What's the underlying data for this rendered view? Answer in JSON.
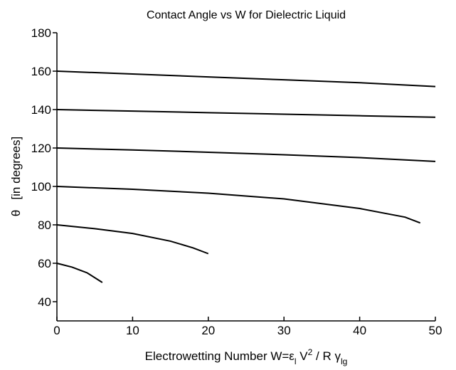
{
  "chart_data": {
    "type": "line",
    "title": "Contact Angle vs W for Dielectric Liquid",
    "xlabel": [
      {
        "text": "Electrowetting Number W=ε"
      },
      {
        "text": "l",
        "baseline": "sub"
      },
      {
        "text": " V"
      },
      {
        "text": "2",
        "baseline": "super"
      },
      {
        "text": " / R γ"
      },
      {
        "text": "lg",
        "baseline": "sub"
      }
    ],
    "ylabel": "θ   [in degrees]",
    "xlim": [
      0,
      50
    ],
    "xticks": [
      0,
      10,
      20,
      30,
      40,
      50
    ],
    "ylim": [
      30,
      180
    ],
    "yticks": [
      40,
      60,
      80,
      100,
      120,
      140,
      160,
      180
    ],
    "grid": false,
    "series": [
      {
        "color": "#000000",
        "x": [
          0,
          10,
          20,
          30,
          40,
          50
        ],
        "values": [
          160,
          158.5,
          157,
          155.5,
          154,
          152
        ]
      },
      {
        "color": "#000000",
        "x": [
          0,
          10,
          20,
          30,
          40,
          50
        ],
        "values": [
          140,
          139.2,
          138.4,
          137.6,
          136.8,
          136
        ]
      },
      {
        "color": "#000000",
        "x": [
          0,
          10,
          20,
          30,
          40,
          50
        ],
        "values": [
          120,
          119,
          117.8,
          116.5,
          115,
          113
        ]
      },
      {
        "color": "#000000",
        "x": [
          0,
          10,
          20,
          30,
          40,
          46,
          48
        ],
        "values": [
          100,
          98.5,
          96.5,
          93.5,
          88.5,
          84,
          81
        ]
      },
      {
        "color": "#000000",
        "x": [
          0,
          5,
          10,
          15,
          18,
          20
        ],
        "values": [
          80,
          78,
          75.5,
          71.5,
          68,
          65
        ]
      },
      {
        "color": "#000000",
        "x": [
          0,
          2,
          4,
          6
        ],
        "values": [
          60,
          58,
          55,
          50
        ]
      }
    ]
  }
}
